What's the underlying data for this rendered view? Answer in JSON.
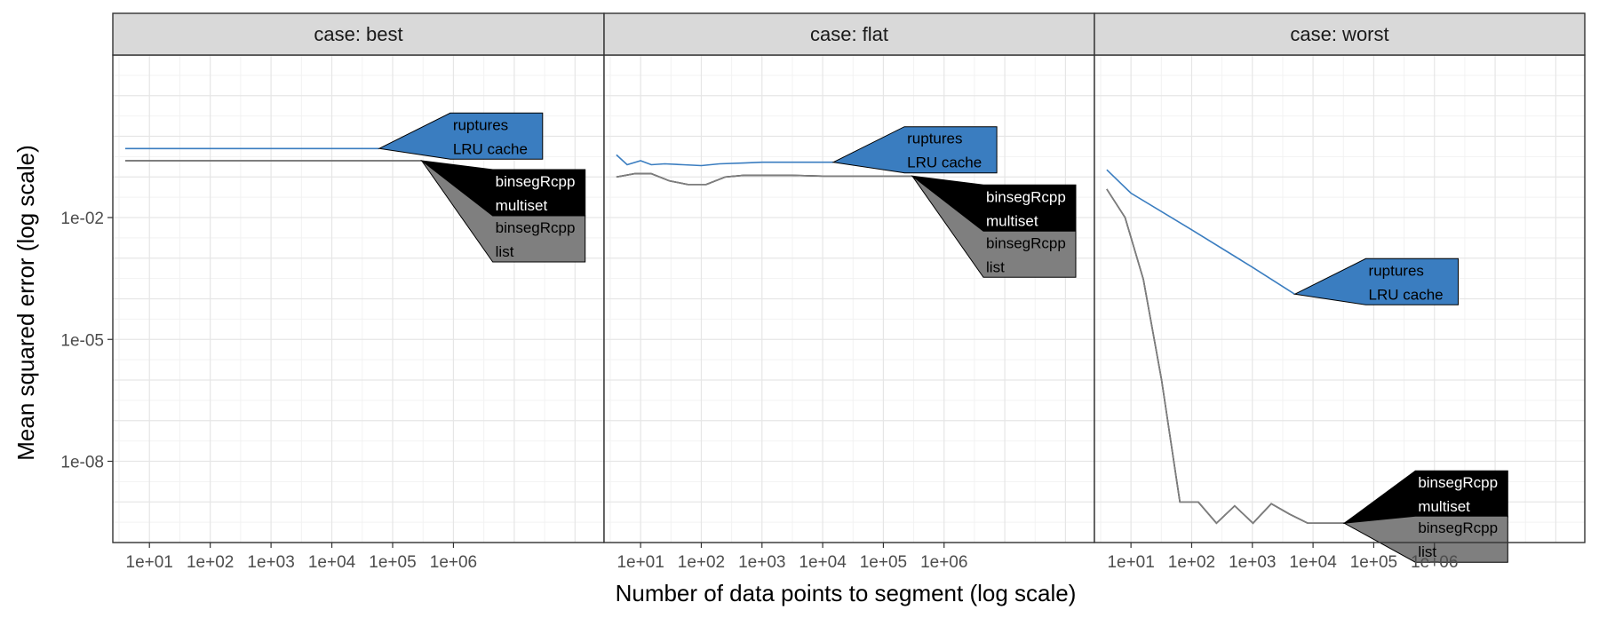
{
  "chart_data": {
    "type": "line",
    "xlabel": "Number of data points to segment (log scale)",
    "ylabel": "Mean squared error (log scale)",
    "x_scale": "log10",
    "y_scale": "log10",
    "xlim": [
      2.5,
      300000000
    ],
    "ylim": [
      1e-10,
      100
    ],
    "x_ticks": [
      {
        "value": 10,
        "label": "1e+01"
      },
      {
        "value": 100,
        "label": "1e+02"
      },
      {
        "value": 1000,
        "label": "1e+03"
      },
      {
        "value": 10000,
        "label": "1e+04"
      },
      {
        "value": 100000,
        "label": "1e+05"
      },
      {
        "value": 1000000,
        "label": "1e+06"
      }
    ],
    "y_ticks": [
      {
        "value": 0.01,
        "label": "1e-02"
      },
      {
        "value": 1e-05,
        "label": "1e-05"
      },
      {
        "value": 1e-08,
        "label": "1e-08"
      }
    ],
    "grid": true,
    "legend": "none (direct labels at line ends)",
    "colors": {
      "ruptures": "#3A7DC0",
      "multiset": "#000000",
      "list": "#7F7F7F"
    },
    "panels": [
      {
        "strip": "case: best",
        "series": [
          {
            "label": [
              "ruptures",
              "LRU cache"
            ],
            "color": "#3A7DC0",
            "label_style": "ruptures",
            "x": [
              4,
              10,
              100,
              1000,
              10000,
              60000
            ],
            "y": [
              0.5,
              0.5,
              0.5,
              0.5,
              0.5,
              0.5
            ]
          },
          {
            "label": [
              "binsegRcpp",
              "multiset"
            ],
            "color": "#000000",
            "label_style": "multiset",
            "x": [
              4,
              10,
              100,
              1000,
              10000,
              100000,
              300000
            ],
            "y": [
              0.25,
              0.25,
              0.25,
              0.25,
              0.25,
              0.25,
              0.25
            ]
          },
          {
            "label": [
              "binsegRcpp",
              "list"
            ],
            "color": "#7F7F7F",
            "label_style": "list",
            "x": [
              4,
              10,
              100,
              1000,
              10000,
              100000,
              300000
            ],
            "y": [
              0.25,
              0.25,
              0.25,
              0.25,
              0.25,
              0.25,
              0.25
            ]
          }
        ]
      },
      {
        "strip": "case: flat",
        "series": [
          {
            "label": [
              "ruptures",
              "LRU cache"
            ],
            "color": "#3A7DC0",
            "label_style": "ruptures",
            "x": [
              4,
              6,
              10,
              15,
              25,
              50,
              100,
              200,
              500,
              1000,
              2000,
              5000,
              15000
            ],
            "y": [
              0.35,
              0.2,
              0.25,
              0.2,
              0.21,
              0.2,
              0.19,
              0.21,
              0.22,
              0.23,
              0.23,
              0.23,
              0.23
            ]
          },
          {
            "label": [
              "binsegRcpp",
              "multiset"
            ],
            "color": "#000000",
            "label_style": "multiset",
            "x": [
              4,
              8,
              15,
              30,
              60,
              120,
              250,
              500,
              1000,
              3000,
              10000,
              50000,
              300000
            ],
            "y": [
              0.1,
              0.12,
              0.12,
              0.08,
              0.065,
              0.065,
              0.1,
              0.11,
              0.11,
              0.11,
              0.105,
              0.105,
              0.105
            ]
          },
          {
            "label": [
              "binsegRcpp",
              "list"
            ],
            "color": "#7F7F7F",
            "label_style": "list",
            "x": [
              4,
              8,
              15,
              30,
              60,
              120,
              250,
              500,
              1000,
              3000,
              10000,
              50000,
              300000
            ],
            "y": [
              0.1,
              0.12,
              0.12,
              0.08,
              0.065,
              0.065,
              0.1,
              0.11,
              0.11,
              0.11,
              0.105,
              0.105,
              0.105
            ]
          }
        ]
      },
      {
        "strip": "case: worst",
        "series": [
          {
            "label": [
              "ruptures",
              "LRU cache"
            ],
            "color": "#3A7DC0",
            "label_style": "ruptures",
            "x": [
              4,
              10,
              100,
              1000,
              5000
            ],
            "y": [
              0.15,
              0.04,
              0.005,
              0.0006,
              0.00013
            ]
          },
          {
            "label": [
              "binsegRcpp",
              "multiset"
            ],
            "color": "#000000",
            "label_style": "multiset",
            "x": [
              4,
              8,
              16,
              32,
              64,
              128,
              256,
              512,
              1024,
              2048,
              4096,
              8192,
              16384,
              32768
            ],
            "y": [
              0.05,
              0.01,
              0.0003,
              1e-06,
              1e-09,
              1e-09,
              3e-10,
              8e-10,
              3e-10,
              9e-10,
              5e-10,
              3e-10,
              3e-10,
              3e-10
            ]
          },
          {
            "label": [
              "binsegRcpp",
              "list"
            ],
            "color": "#7F7F7F",
            "label_style": "list",
            "x": [
              4,
              8,
              16,
              32,
              64,
              128,
              256,
              512,
              1024,
              2048,
              4096,
              8192,
              16384,
              32768
            ],
            "y": [
              0.05,
              0.01,
              0.0003,
              1e-06,
              1e-09,
              1e-09,
              3e-10,
              8e-10,
              3e-10,
              9e-10,
              5e-10,
              3e-10,
              3e-10,
              3e-10
            ]
          }
        ]
      }
    ]
  }
}
